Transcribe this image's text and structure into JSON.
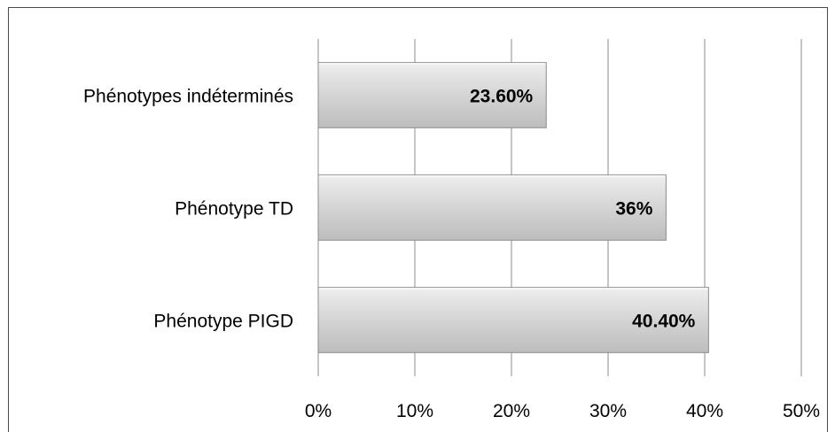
{
  "chart_data": {
    "type": "bar",
    "orientation": "horizontal",
    "categories": [
      "Phénotypes indéterminés",
      "Phénotype TD",
      "Phénotype PIGD"
    ],
    "values": [
      23.6,
      36,
      40.4
    ],
    "value_labels": [
      "23.60%",
      "36%",
      "40.40%"
    ],
    "xlim": [
      0,
      50
    ],
    "x_ticks": [
      0,
      10,
      20,
      30,
      40,
      50
    ],
    "x_tick_labels": [
      "0%",
      "10%",
      "20%",
      "30%",
      "40%",
      "50%"
    ],
    "grid": true,
    "legend": "none",
    "title": "",
    "xlabel": "",
    "ylabel": "",
    "colors": {
      "bar_fill": "#d9d9d9",
      "bar_edge": "#8c8c8c",
      "grid": "#8c8c8c"
    }
  }
}
